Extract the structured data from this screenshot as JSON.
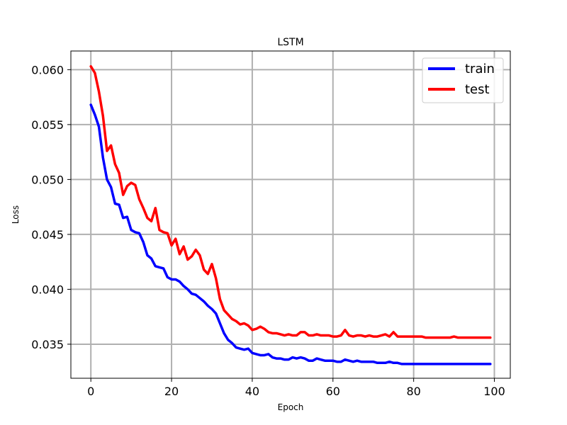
{
  "chart_data": {
    "type": "line",
    "title": "LSTM",
    "xlabel": "Epoch",
    "ylabel": "Loss",
    "xlim": [
      -4.95,
      103.95
    ],
    "ylim": [
      0.0319,
      0.0617
    ],
    "xticks": [
      0,
      20,
      40,
      60,
      80,
      100
    ],
    "yticks": [
      0.035,
      0.04,
      0.045,
      0.05,
      0.055,
      0.06
    ],
    "ytick_labels": [
      "0.035",
      "0.040",
      "0.045",
      "0.050",
      "0.055",
      "0.060"
    ],
    "grid": true,
    "legend_position": "top-right",
    "colors": {
      "train": "#0000ff",
      "test": "#ff0000",
      "grid": "#b0b0b0"
    },
    "series": [
      {
        "name": "train",
        "values": [
          0.0568,
          0.0559,
          0.0548,
          0.052,
          0.05,
          0.0493,
          0.0478,
          0.0477,
          0.0465,
          0.0466,
          0.0454,
          0.0452,
          0.0451,
          0.0443,
          0.0431,
          0.0428,
          0.0421,
          0.042,
          0.0419,
          0.0411,
          0.0409,
          0.0409,
          0.0407,
          0.0403,
          0.04,
          0.0396,
          0.0395,
          0.0392,
          0.0389,
          0.0385,
          0.0382,
          0.0378,
          0.0369,
          0.036,
          0.0354,
          0.0351,
          0.0347,
          0.0346,
          0.0345,
          0.0346,
          0.0342,
          0.0341,
          0.034,
          0.034,
          0.0341,
          0.0338,
          0.0337,
          0.0337,
          0.0336,
          0.0336,
          0.0338,
          0.0337,
          0.0338,
          0.0337,
          0.0335,
          0.0335,
          0.0337,
          0.0336,
          0.0335,
          0.0335,
          0.0335,
          0.0334,
          0.0334,
          0.0336,
          0.0335,
          0.0334,
          0.0335,
          0.0334,
          0.0334,
          0.0334,
          0.0334,
          0.0333,
          0.0333,
          0.0333,
          0.0334,
          0.0333,
          0.0333,
          0.0332,
          0.0332,
          0.0332,
          0.0332,
          0.0332,
          0.0332,
          0.0332,
          0.0332,
          0.0332,
          0.0332,
          0.0332,
          0.0332,
          0.0332,
          0.0332,
          0.0332,
          0.0332,
          0.0332,
          0.0332,
          0.0332,
          0.0332,
          0.0332,
          0.0332,
          0.0332
        ]
      },
      {
        "name": "test",
        "values": [
          0.0603,
          0.0597,
          0.058,
          0.0558,
          0.0526,
          0.0531,
          0.0514,
          0.0506,
          0.0486,
          0.0494,
          0.0497,
          0.0495,
          0.0482,
          0.0474,
          0.0465,
          0.0462,
          0.0474,
          0.0454,
          0.0452,
          0.0451,
          0.044,
          0.0446,
          0.0432,
          0.0439,
          0.0427,
          0.043,
          0.0436,
          0.0431,
          0.0418,
          0.0414,
          0.0423,
          0.041,
          0.0391,
          0.0381,
          0.0377,
          0.0373,
          0.0371,
          0.0368,
          0.0369,
          0.0367,
          0.0363,
          0.0364,
          0.0366,
          0.0364,
          0.0361,
          0.036,
          0.036,
          0.0359,
          0.0358,
          0.0359,
          0.0358,
          0.0358,
          0.0361,
          0.0361,
          0.0358,
          0.0358,
          0.0359,
          0.0358,
          0.0358,
          0.0358,
          0.0357,
          0.0357,
          0.0358,
          0.0363,
          0.0358,
          0.0357,
          0.0358,
          0.0358,
          0.0357,
          0.0358,
          0.0357,
          0.0357,
          0.0358,
          0.0359,
          0.0357,
          0.0361,
          0.0357,
          0.0357,
          0.0357,
          0.0357,
          0.0357,
          0.0357,
          0.0357,
          0.0356,
          0.0356,
          0.0356,
          0.0356,
          0.0356,
          0.0356,
          0.0356,
          0.0357,
          0.0356,
          0.0356,
          0.0356,
          0.0356,
          0.0356,
          0.0356,
          0.0356,
          0.0356,
          0.0356
        ]
      }
    ]
  }
}
